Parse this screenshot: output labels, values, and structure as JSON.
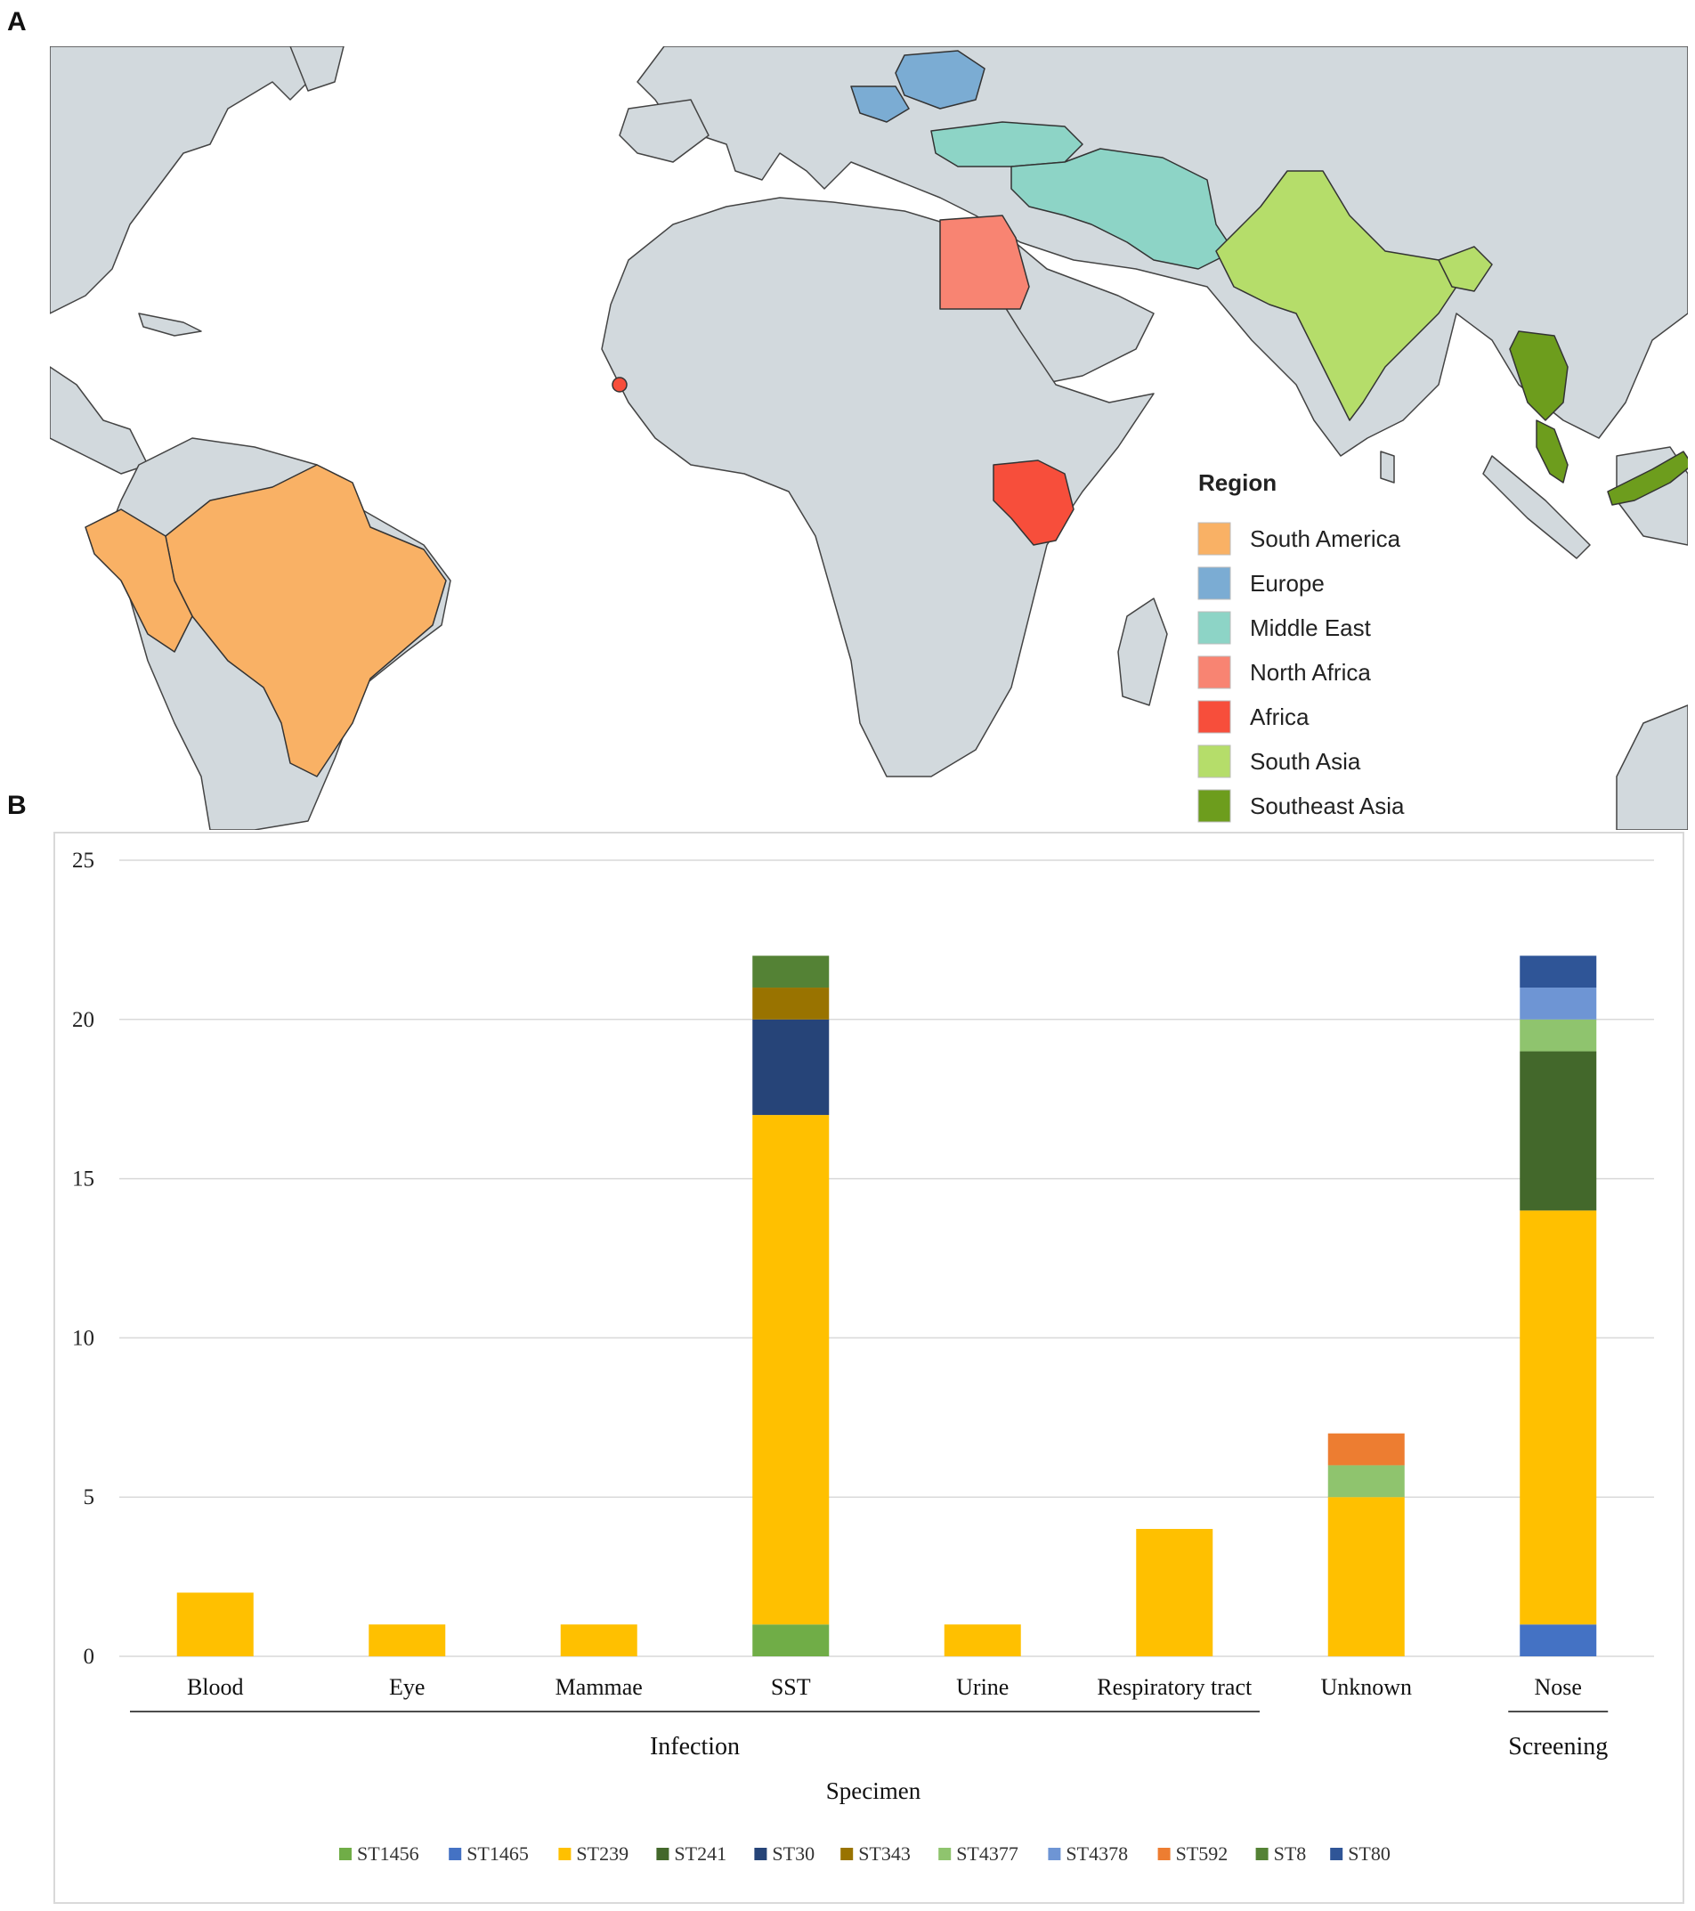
{
  "panel_a": {
    "letter": "A",
    "legend": {
      "title": "Region",
      "items": [
        {
          "label": "South America",
          "color": "#F9B165"
        },
        {
          "label": "Europe",
          "color": "#7BACD3"
        },
        {
          "label": "Middle East",
          "color": "#8DD4C6"
        },
        {
          "label": "North Africa",
          "color": "#F88472"
        },
        {
          "label": "Africa",
          "color": "#F74E3B"
        },
        {
          "label": "South Asia",
          "color": "#B5DD6A"
        },
        {
          "label": "Southeast Asia",
          "color": "#6D9D1D"
        }
      ]
    },
    "colors": {
      "ocean": "#ffffff",
      "land": "#D2D9DD",
      "border": "#444444"
    }
  },
  "panel_b": {
    "letter": "B"
  },
  "chart_data": {
    "type": "bar",
    "stacked": true,
    "categories": [
      "Blood",
      "Eye",
      "Mammae",
      "SST",
      "Urine",
      "Respiratory tract",
      "Unknown",
      "Nose"
    ],
    "groups": [
      {
        "label": "Infection",
        "categories": [
          "Blood",
          "Eye",
          "Mammae",
          "SST",
          "Urine",
          "Respiratory tract"
        ]
      },
      {
        "label": "Screening",
        "categories": [
          "Nose"
        ]
      }
    ],
    "xlabel": "Specimen",
    "ylabel": "",
    "ylim": [
      0,
      25
    ],
    "yticks": [
      "0",
      "5",
      "10",
      "15",
      "20",
      "25"
    ],
    "grid": true,
    "legend_position": "bottom",
    "series": [
      {
        "name": "ST1456",
        "color": "#70AD47",
        "values": [
          0,
          0,
          0,
          1,
          0,
          0,
          0,
          0
        ]
      },
      {
        "name": "ST1465",
        "color": "#4472C4",
        "values": [
          0,
          0,
          0,
          0,
          0,
          0,
          0,
          1
        ]
      },
      {
        "name": "ST239",
        "color": "#FFC000",
        "values": [
          2,
          1,
          1,
          16,
          1,
          4,
          5,
          13
        ]
      },
      {
        "name": "ST241",
        "color": "#43682B",
        "values": [
          0,
          0,
          0,
          0,
          0,
          0,
          0,
          5
        ]
      },
      {
        "name": "ST30",
        "color": "#264478",
        "values": [
          0,
          0,
          0,
          3,
          0,
          0,
          0,
          0
        ]
      },
      {
        "name": "ST343",
        "color": "#997300",
        "values": [
          0,
          0,
          0,
          1,
          0,
          0,
          0,
          0
        ]
      },
      {
        "name": "ST4377",
        "color": "#8FC46E",
        "values": [
          0,
          0,
          0,
          0,
          0,
          0,
          1,
          1
        ]
      },
      {
        "name": "ST4378",
        "color": "#6E95D4",
        "values": [
          0,
          0,
          0,
          0,
          0,
          0,
          0,
          1
        ]
      },
      {
        "name": "ST592",
        "color": "#ED7D31",
        "values": [
          0,
          0,
          0,
          0,
          0,
          0,
          1,
          0
        ]
      },
      {
        "name": "ST8",
        "color": "#548235",
        "values": [
          0,
          0,
          0,
          1,
          0,
          0,
          0,
          0
        ]
      },
      {
        "name": "ST80",
        "color": "#2F5597",
        "values": [
          0,
          0,
          0,
          0,
          0,
          0,
          0,
          1
        ]
      }
    ]
  }
}
